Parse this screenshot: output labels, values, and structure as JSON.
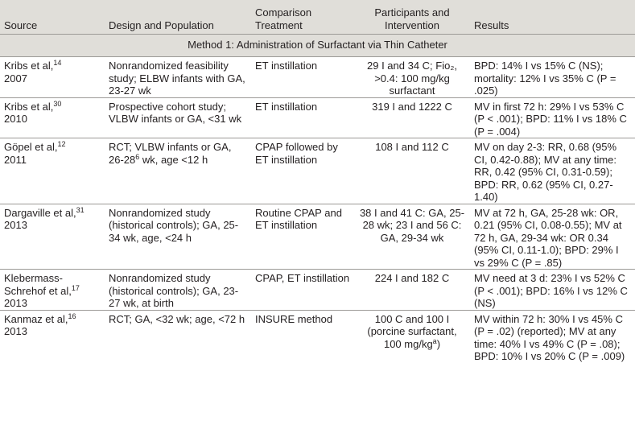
{
  "headers": {
    "source": "Source",
    "design": "Design and Population",
    "comparison": "Comparison Treatment",
    "participants": "Participants and Intervention",
    "results": "Results"
  },
  "section_title": "Method 1: Administration of Surfactant via Thin Catheter",
  "rows": [
    {
      "source_name": "Kribs et al,",
      "source_ref": "14",
      "source_year": "2007",
      "design": "Nonrandomized feasibility study; ELBW infants with GA, 23-27 wk",
      "comparison": "ET instillation",
      "participants": "29 I and 34 C; Fio₂, >0.4: 100 mg/kg surfactant",
      "results": "BPD: 14% I vs 15% C (NS); mortality: 12% I vs 35% C (P = .025)"
    },
    {
      "source_name": "Kribs et al,",
      "source_ref": "30",
      "source_year": "2010",
      "design": "Prospective cohort study; VLBW infants or GA, <31 wk",
      "comparison": "ET instillation",
      "participants": "319 I and 1222 C",
      "results": "MV in first 72 h: 29% I vs 53% C (P < .001); BPD: 11% I vs 18% C (P = .004)"
    },
    {
      "source_name": "Göpel et al,",
      "source_ref": "12",
      "source_year": "2011",
      "design_a": "RCT; VLBW infants or GA, 26-28",
      "design_sup": "6",
      "design_b": " wk, age <12 h",
      "comparison": "CPAP followed by ET instillation",
      "participants": "108 I and 112 C",
      "results": "MV on day 2-3: RR, 0.68 (95% CI, 0.42-0.88); MV at any time: RR, 0.42 (95% CI, 0.31-0.59); BPD: RR, 0.62 (95% CI, 0.27-1.40)"
    },
    {
      "source_name": "Dargaville et al,",
      "source_ref": "31",
      "source_year": "2013",
      "design": "Nonrandomized study (historical controls); GA, 25-34 wk, age, <24 h",
      "comparison": "Routine CPAP and ET instillation",
      "participants": "38 I and 41 C: GA, 25-28 wk; 23 I and 56 C: GA, 29-34 wk",
      "results": "MV at 72 h, GA, 25-28 wk: OR, 0.21 (95% CI, 0.08-0.55); MV at 72 h, GA, 29-34 wk: OR 0.34 (95% CI, 0.11-1.0); BPD: 29% I vs 29% C (P = .85)"
    },
    {
      "source_name": "Klebermass-Schrehof et al,",
      "source_ref": "17",
      "source_year": "2013",
      "design": "Nonrandomized study (historical controls); GA, 23-27 wk, at birth",
      "comparison": "CPAP, ET instillation",
      "participants": "224 I and 182 C",
      "results": "MV need at 3 d: 23% I vs 52% C (P < .001); BPD: 16% I vs 12% C (NS)"
    },
    {
      "source_name": "Kanmaz et al,",
      "source_ref": "16",
      "source_year": "2013",
      "design": "RCT; GA, <32 wk; age, <72 h",
      "comparison": "INSURE method",
      "participants_a": "100 C and 100 I (porcine surfactant, 100 mg/kg",
      "participants_sup": "a",
      "participants_b": ")",
      "results": "MV within 72 h: 30% I vs 45% C (P = .02) (reported); MV at any time: 40% I vs 49% C (P = .08); BPD: 10% I vs 20% C (P = .009)"
    }
  ]
}
